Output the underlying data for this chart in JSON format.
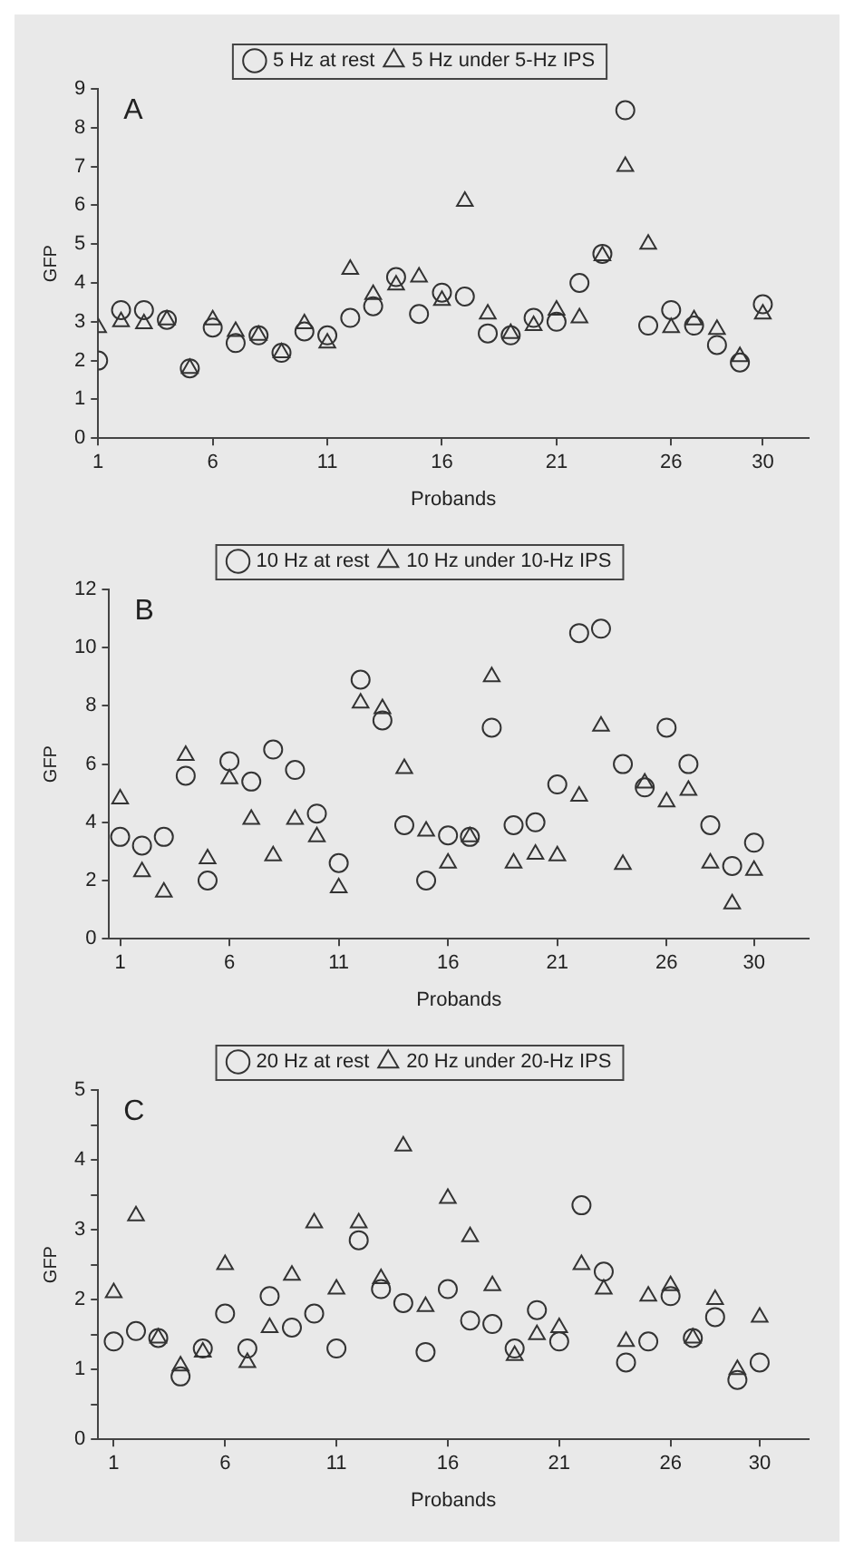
{
  "chart_data": [
    {
      "type": "scatter",
      "title": "A",
      "xlabel": "Probands",
      "ylabel": "GFP",
      "legend": "top",
      "grid": false,
      "x": [
        1,
        2,
        3,
        4,
        5,
        6,
        7,
        8,
        9,
        10,
        11,
        12,
        13,
        14,
        15,
        16,
        17,
        18,
        19,
        20,
        21,
        22,
        23,
        24,
        25,
        26,
        27,
        28,
        29,
        30
      ],
      "xlim": [
        1,
        32
      ],
      "xticks": [
        1,
        6,
        11,
        16,
        21,
        26,
        30
      ],
      "ylim": [
        0,
        9
      ],
      "yticks": [
        0,
        1,
        2,
        3,
        4,
        5,
        6,
        7,
        8,
        9
      ],
      "series": [
        {
          "name": "5 Hz at rest",
          "color": "#333333",
          "marker": "circle",
          "values": [
            2.0,
            3.3,
            3.3,
            3.05,
            1.8,
            2.85,
            2.45,
            2.65,
            2.2,
            2.75,
            2.65,
            3.1,
            3.4,
            4.15,
            3.2,
            3.75,
            3.65,
            2.7,
            2.65,
            3.1,
            3.0,
            4.0,
            4.75,
            8.45,
            2.9,
            3.3,
            2.9,
            2.4,
            1.95,
            3.45
          ]
        },
        {
          "name": "5 Hz under 5-Hz IPS",
          "color": "#333333",
          "marker": "triangle",
          "values": [
            2.85,
            3.0,
            2.95,
            3.05,
            1.8,
            3.05,
            2.75,
            2.65,
            2.2,
            2.95,
            2.45,
            4.35,
            3.7,
            3.95,
            4.15,
            3.55,
            6.1,
            3.2,
            2.7,
            2.9,
            3.3,
            3.1,
            4.7,
            7.0,
            5.0,
            2.85,
            3.05,
            2.8,
            2.1,
            3.2
          ]
        }
      ]
    },
    {
      "type": "scatter",
      "title": "B",
      "xlabel": "Probands",
      "ylabel": "GFP",
      "legend": "top",
      "grid": false,
      "x": [
        1,
        2,
        3,
        4,
        5,
        6,
        7,
        8,
        9,
        10,
        11,
        12,
        13,
        14,
        15,
        16,
        17,
        18,
        19,
        20,
        21,
        22,
        23,
        24,
        25,
        26,
        27,
        28,
        29,
        30
      ],
      "xlim": [
        0.5,
        32.5
      ],
      "xticks": [
        1,
        6,
        11,
        16,
        21,
        26,
        30
      ],
      "ylim": [
        0,
        12
      ],
      "yticks": [
        0,
        2,
        4,
        6,
        8,
        10,
        12
      ],
      "series": [
        {
          "name": "10 Hz at rest",
          "color": "#333333",
          "marker": "circle",
          "values": [
            3.5,
            3.2,
            3.5,
            5.6,
            2.0,
            6.1,
            5.4,
            6.5,
            5.8,
            4.3,
            2.6,
            8.9,
            7.5,
            3.9,
            2.0,
            3.55,
            3.5,
            7.25,
            3.9,
            4.0,
            5.3,
            10.5,
            10.65,
            6.0,
            5.2,
            7.25,
            6.0,
            3.9,
            2.5,
            3.3
          ]
        },
        {
          "name": "10 Hz under 10-Hz IPS",
          "color": "#333333",
          "marker": "triangle",
          "values": [
            4.8,
            2.3,
            1.6,
            6.3,
            2.75,
            5.5,
            4.1,
            2.85,
            4.1,
            3.5,
            1.75,
            8.1,
            7.9,
            5.85,
            3.7,
            2.6,
            3.5,
            9.0,
            2.6,
            2.9,
            2.85,
            4.9,
            7.3,
            2.55,
            5.35,
            4.7,
            5.1,
            2.6,
            1.2,
            2.35
          ]
        }
      ]
    },
    {
      "type": "scatter",
      "title": "C",
      "xlabel": "Probands",
      "ylabel": "GFP",
      "legend": "top",
      "grid": false,
      "x": [
        1,
        2,
        3,
        4,
        5,
        6,
        7,
        8,
        9,
        10,
        11,
        12,
        13,
        14,
        15,
        16,
        17,
        18,
        19,
        20,
        21,
        22,
        23,
        24,
        25,
        26,
        27,
        28,
        29,
        30
      ],
      "xlim": [
        0.3,
        32.2
      ],
      "xticks": [
        1,
        6,
        11,
        16,
        21,
        26,
        30
      ],
      "ylim": [
        0,
        5
      ],
      "yticks": [
        0,
        {
          "value": 0.5,
          "label": null
        },
        1,
        {
          "value": 1.5,
          "label": null
        },
        2,
        {
          "value": 2.5,
          "label": null
        },
        3,
        {
          "value": 3.5,
          "label": null
        },
        4,
        {
          "value": 4.5,
          "label": null
        },
        5
      ],
      "series": [
        {
          "name": "20 Hz at rest",
          "color": "#333333",
          "marker": "circle",
          "values": [
            1.4,
            1.55,
            1.45,
            0.9,
            1.3,
            1.8,
            1.3,
            2.05,
            1.6,
            1.8,
            1.3,
            2.85,
            2.15,
            1.95,
            1.25,
            2.15,
            1.7,
            1.65,
            1.3,
            1.85,
            1.4,
            3.35,
            2.4,
            1.1,
            1.4,
            2.05,
            1.45,
            1.75,
            0.85,
            1.1
          ]
        },
        {
          "name": "20 Hz under 20-Hz IPS",
          "color": "#333333",
          "marker": "triangle",
          "values": [
            2.1,
            3.2,
            1.45,
            1.05,
            1.25,
            2.5,
            1.1,
            1.6,
            2.35,
            3.1,
            2.15,
            3.1,
            2.3,
            4.2,
            1.9,
            3.45,
            2.9,
            2.2,
            1.2,
            1.5,
            1.6,
            2.5,
            2.15,
            1.4,
            2.05,
            2.2,
            1.45,
            2.0,
            1.0,
            1.75
          ]
        }
      ]
    }
  ]
}
